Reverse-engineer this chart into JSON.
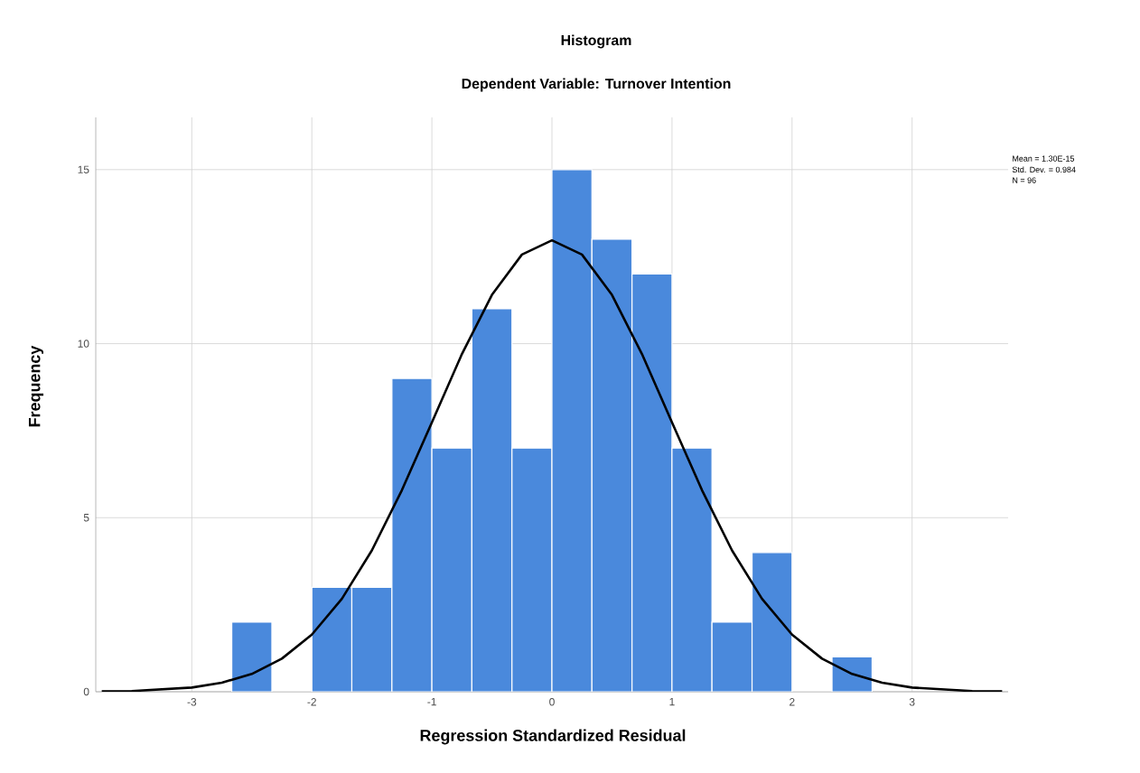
{
  "chart_data": {
    "type": "histogram",
    "title": "Histogram",
    "subtitle": "Dependent Variable: Turnover Intention",
    "xlabel": "Regression Standardized Residual",
    "ylabel": "Frequency",
    "series": [
      {
        "color": "#4a89dc",
        "bins": [
          -2.667,
          -2.333,
          -2,
          -1.667,
          -1.333,
          -1,
          -0.667,
          -0.333,
          0,
          0.333,
          0.667,
          1,
          1.333,
          1.667,
          2,
          2.333,
          2.667
        ],
        "values": [
          2,
          0,
          3,
          3,
          9,
          7,
          11,
          7,
          15,
          13,
          12,
          7,
          2,
          4,
          0,
          1
        ]
      },
      {
        "type": "line",
        "color": "#000000",
        "x": [
          -3.75,
          -3.5,
          -3,
          -2.75,
          -2.5,
          -2.25,
          -2,
          -1.75,
          -1.5,
          -1.25,
          -1,
          -0.75,
          -0.5,
          -0.25,
          0,
          0.25,
          0.5,
          0.75,
          1,
          1.25,
          1.5,
          1.75,
          2,
          2.25,
          2.5,
          2.75,
          3,
          3.5,
          3.75
        ],
        "values": [
          0.01,
          0.02,
          0.12,
          0.26,
          0.51,
          0.95,
          1.64,
          2.67,
          4.06,
          5.79,
          7.74,
          9.7,
          11.4,
          12.56,
          12.97,
          12.56,
          11.4,
          9.7,
          7.74,
          5.79,
          4.06,
          2.67,
          1.64,
          0.95,
          0.51,
          0.26,
          0.12,
          0.02,
          0.01
        ]
      }
    ],
    "xlim": [
      -3.8,
      3.8
    ],
    "ylim": [
      0,
      16.5
    ],
    "xticks": [
      -3,
      -2,
      -1,
      0,
      1,
      2,
      3
    ],
    "yticks": [
      0,
      5,
      10,
      15
    ],
    "grid": true,
    "marker": "none",
    "line_style": "solid",
    "annotations": [
      "Mean = 1.30E-15",
      "Std. Dev. = 0.984",
      "N = 96"
    ]
  }
}
